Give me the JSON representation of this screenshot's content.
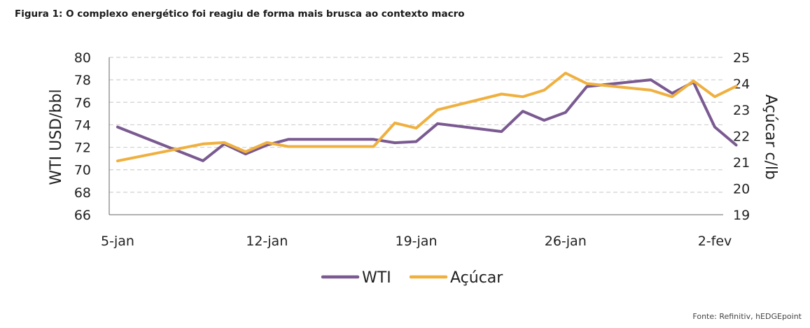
{
  "figure": {
    "title": "Figura 1: O complexo energético foi reagiu de forma mais brusca ao contexto macro",
    "source": "Fonte: Refinitiv, hEDGEpoint"
  },
  "chart_data": {
    "type": "line",
    "x_tick_labels": [
      "5-jan",
      "12-jan",
      "19-jan",
      "26-jan",
      "2-fev"
    ],
    "x": [
      "2023-01-05",
      "2023-01-06",
      "2023-01-09",
      "2023-01-10",
      "2023-01-11",
      "2023-01-12",
      "2023-01-13",
      "2023-01-16",
      "2023-01-17",
      "2023-01-18",
      "2023-01-19",
      "2023-01-20",
      "2023-01-23",
      "2023-01-24",
      "2023-01-25",
      "2023-01-26",
      "2023-01-27",
      "2023-01-30",
      "2023-01-31",
      "2023-02-01",
      "2023-02-02"
    ],
    "ylabel_left": "WTI USD/bbl",
    "ylabel_right": "Açúcar c/lb",
    "ylim_left": [
      66,
      80
    ],
    "yticks_left": [
      66,
      68,
      70,
      72,
      74,
      76,
      78,
      80
    ],
    "ylim_right": [
      19,
      25
    ],
    "yticks_right": [
      19,
      20,
      21,
      22,
      23,
      24,
      25
    ],
    "grid": "horizontal dashed",
    "legend": "bottom",
    "series": [
      {
        "name": "WTI",
        "axis": "left",
        "color": "#7a5a91",
        "points": [
          {
            "x": "2023-01-05",
            "y": 73.8
          },
          {
            "x": "2023-01-09",
            "y": 70.8
          },
          {
            "x": "2023-01-10",
            "y": 72.3
          },
          {
            "x": "2023-01-11",
            "y": 71.4
          },
          {
            "x": "2023-01-12",
            "y": 72.2
          },
          {
            "x": "2023-01-13",
            "y": 72.7
          },
          {
            "x": "2023-01-17",
            "y": 72.7
          },
          {
            "x": "2023-01-18",
            "y": 72.4
          },
          {
            "x": "2023-01-19",
            "y": 72.5
          },
          {
            "x": "2023-01-20",
            "y": 74.1
          },
          {
            "x": "2023-01-23",
            "y": 73.4
          },
          {
            "x": "2023-01-24",
            "y": 75.2
          },
          {
            "x": "2023-01-25",
            "y": 74.4
          },
          {
            "x": "2023-01-26",
            "y": 75.1
          },
          {
            "x": "2023-01-27",
            "y": 77.4
          },
          {
            "x": "2023-01-30",
            "y": 78.0
          },
          {
            "x": "2023-01-31",
            "y": 76.8
          },
          {
            "x": "2023-02-01",
            "y": 77.8
          },
          {
            "x": "2023-02-02",
            "y": 73.8
          },
          {
            "x": "2023-02-03",
            "y": 72.2
          }
        ]
      },
      {
        "name": "Açúcar",
        "axis": "right",
        "color": "#efb03f",
        "points": [
          {
            "x": "2023-01-05",
            "y": 21.05
          },
          {
            "x": "2023-01-09",
            "y": 21.7
          },
          {
            "x": "2023-01-10",
            "y": 21.75
          },
          {
            "x": "2023-01-11",
            "y": 21.4
          },
          {
            "x": "2023-01-12",
            "y": 21.75
          },
          {
            "x": "2023-01-13",
            "y": 21.6
          },
          {
            "x": "2023-01-17",
            "y": 21.6
          },
          {
            "x": "2023-01-18",
            "y": 22.5
          },
          {
            "x": "2023-01-19",
            "y": 22.3
          },
          {
            "x": "2023-01-20",
            "y": 23.0
          },
          {
            "x": "2023-01-23",
            "y": 23.6
          },
          {
            "x": "2023-01-24",
            "y": 23.5
          },
          {
            "x": "2023-01-25",
            "y": 23.75
          },
          {
            "x": "2023-01-26",
            "y": 24.4
          },
          {
            "x": "2023-01-27",
            "y": 24.0
          },
          {
            "x": "2023-01-30",
            "y": 23.75
          },
          {
            "x": "2023-01-31",
            "y": 23.5
          },
          {
            "x": "2023-02-01",
            "y": 24.1
          },
          {
            "x": "2023-02-02",
            "y": 23.5
          },
          {
            "x": "2023-02-03",
            "y": 23.9
          }
        ]
      }
    ]
  }
}
